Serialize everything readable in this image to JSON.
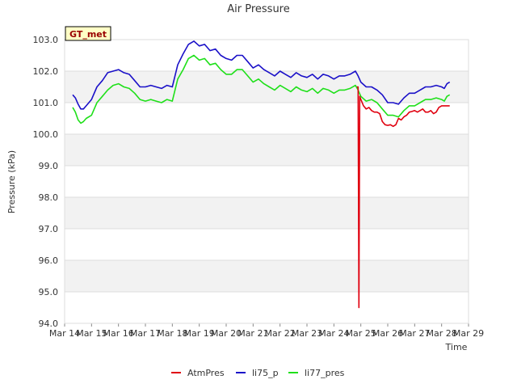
{
  "chart_data": {
    "type": "line",
    "title": "Air Pressure",
    "xlabel": "Time",
    "ylabel": "Pressure (kPa)",
    "badge": "GT_met",
    "xlim": [
      14,
      29
    ],
    "ylim": [
      94.0,
      103.0
    ],
    "x_tick_values": [
      14,
      15,
      16,
      17,
      18,
      19,
      20,
      21,
      22,
      23,
      24,
      25,
      26,
      27,
      28,
      29
    ],
    "x_tick_labels": [
      "Mar 14",
      "Mar 15",
      "Mar 16",
      "Mar 17",
      "Mar 18",
      "Mar 19",
      "Mar 20",
      "Mar 21",
      "Mar 22",
      "Mar 23",
      "Mar 24",
      "Mar 25",
      "Mar 26",
      "Mar 27",
      "Mar 28",
      "Mar 29"
    ],
    "y_tick_values": [
      94,
      95,
      96,
      97,
      98,
      99,
      100,
      101,
      102,
      103
    ],
    "y_tick_labels": [
      "94.0",
      "95.0",
      "96.0",
      "97.0",
      "98.0",
      "99.0",
      "100.0",
      "101.0",
      "102.0",
      "103.0"
    ],
    "grid": true,
    "legend_position": "bottom-center",
    "series": [
      {
        "name": "AtmPres",
        "color": "#e0000f",
        "x": [
          24.85,
          24.9,
          24.93,
          24.96,
          25.0,
          25.1,
          25.2,
          25.3,
          25.4,
          25.5,
          25.6,
          25.7,
          25.8,
          25.9,
          26.0,
          26.1,
          26.2,
          26.3,
          26.4,
          26.5,
          26.6,
          26.7,
          26.8,
          26.9,
          27.0,
          27.1,
          27.2,
          27.3,
          27.4,
          27.5,
          27.6,
          27.7,
          27.8,
          27.9,
          28.0,
          28.1,
          28.2,
          28.3
        ],
        "y": [
          101.5,
          101.5,
          94.5,
          101.2,
          101.1,
          100.9,
          100.8,
          100.85,
          100.75,
          100.7,
          100.7,
          100.65,
          100.4,
          100.3,
          100.28,
          100.3,
          100.25,
          100.3,
          100.5,
          100.45,
          100.55,
          100.6,
          100.7,
          100.72,
          100.75,
          100.7,
          100.75,
          100.8,
          100.7,
          100.7,
          100.75,
          100.65,
          100.7,
          100.85,
          100.9,
          100.9,
          100.9,
          100.9
        ]
      },
      {
        "name": "li75_p",
        "color": "#1a10c8",
        "x": [
          14.3,
          14.4,
          14.5,
          14.6,
          14.7,
          14.8,
          15.0,
          15.2,
          15.4,
          15.6,
          15.8,
          16.0,
          16.2,
          16.4,
          16.6,
          16.8,
          17.0,
          17.2,
          17.4,
          17.6,
          17.8,
          18.0,
          18.2,
          18.4,
          18.6,
          18.8,
          19.0,
          19.2,
          19.4,
          19.6,
          19.8,
          20.0,
          20.2,
          20.4,
          20.6,
          20.8,
          21.0,
          21.2,
          21.4,
          21.6,
          21.8,
          22.0,
          22.2,
          22.4,
          22.6,
          22.8,
          23.0,
          23.2,
          23.4,
          23.6,
          23.8,
          24.0,
          24.2,
          24.4,
          24.6,
          24.8,
          24.9,
          25.0,
          25.2,
          25.4,
          25.6,
          25.8,
          26.0,
          26.2,
          26.4,
          26.6,
          26.8,
          27.0,
          27.2,
          27.4,
          27.6,
          27.8,
          28.0,
          28.1,
          28.2,
          28.3
        ],
        "y": [
          101.25,
          101.15,
          100.95,
          100.8,
          100.8,
          100.9,
          101.1,
          101.5,
          101.7,
          101.95,
          102.0,
          102.05,
          101.95,
          101.9,
          101.7,
          101.5,
          101.5,
          101.55,
          101.5,
          101.45,
          101.55,
          101.5,
          102.2,
          102.55,
          102.85,
          102.95,
          102.8,
          102.85,
          102.65,
          102.7,
          102.5,
          102.4,
          102.35,
          102.5,
          102.5,
          102.3,
          102.1,
          102.2,
          102.05,
          101.95,
          101.85,
          102.0,
          101.9,
          101.8,
          101.95,
          101.85,
          101.8,
          101.9,
          101.75,
          101.9,
          101.85,
          101.75,
          101.85,
          101.85,
          101.9,
          102.0,
          101.85,
          101.65,
          101.5,
          101.5,
          101.4,
          101.25,
          101.0,
          101.0,
          100.95,
          101.15,
          101.3,
          101.3,
          101.4,
          101.5,
          101.5,
          101.55,
          101.5,
          101.45,
          101.6,
          101.65
        ]
      },
      {
        "name": "li77_pres",
        "color": "#1fe01a",
        "x": [
          14.3,
          14.4,
          14.5,
          14.6,
          14.7,
          14.8,
          15.0,
          15.2,
          15.4,
          15.6,
          15.8,
          16.0,
          16.2,
          16.4,
          16.6,
          16.8,
          17.0,
          17.2,
          17.4,
          17.6,
          17.8,
          18.0,
          18.2,
          18.4,
          18.6,
          18.8,
          19.0,
          19.2,
          19.4,
          19.6,
          19.8,
          20.0,
          20.2,
          20.4,
          20.6,
          20.8,
          21.0,
          21.2,
          21.4,
          21.6,
          21.8,
          22.0,
          22.2,
          22.4,
          22.6,
          22.8,
          23.0,
          23.2,
          23.4,
          23.6,
          23.8,
          24.0,
          24.2,
          24.4,
          24.6,
          24.8,
          24.9,
          25.0,
          25.2,
          25.4,
          25.6,
          25.8,
          26.0,
          26.2,
          26.4,
          26.6,
          26.8,
          27.0,
          27.2,
          27.4,
          27.6,
          27.8,
          28.0,
          28.1,
          28.2,
          28.3
        ],
        "y": [
          100.85,
          100.7,
          100.45,
          100.35,
          100.4,
          100.5,
          100.6,
          101.0,
          101.2,
          101.4,
          101.55,
          101.6,
          101.5,
          101.45,
          101.3,
          101.1,
          101.05,
          101.1,
          101.05,
          101.0,
          101.1,
          101.05,
          101.75,
          102.05,
          102.4,
          102.5,
          102.35,
          102.4,
          102.2,
          102.25,
          102.05,
          101.9,
          101.9,
          102.05,
          102.05,
          101.85,
          101.65,
          101.75,
          101.6,
          101.5,
          101.4,
          101.55,
          101.45,
          101.35,
          101.5,
          101.4,
          101.35,
          101.45,
          101.3,
          101.45,
          101.4,
          101.3,
          101.4,
          101.4,
          101.45,
          101.55,
          101.4,
          101.2,
          101.05,
          101.1,
          101.0,
          100.8,
          100.6,
          100.6,
          100.55,
          100.75,
          100.9,
          100.9,
          101.0,
          101.1,
          101.1,
          101.15,
          101.1,
          101.05,
          101.2,
          101.25
        ]
      }
    ]
  }
}
